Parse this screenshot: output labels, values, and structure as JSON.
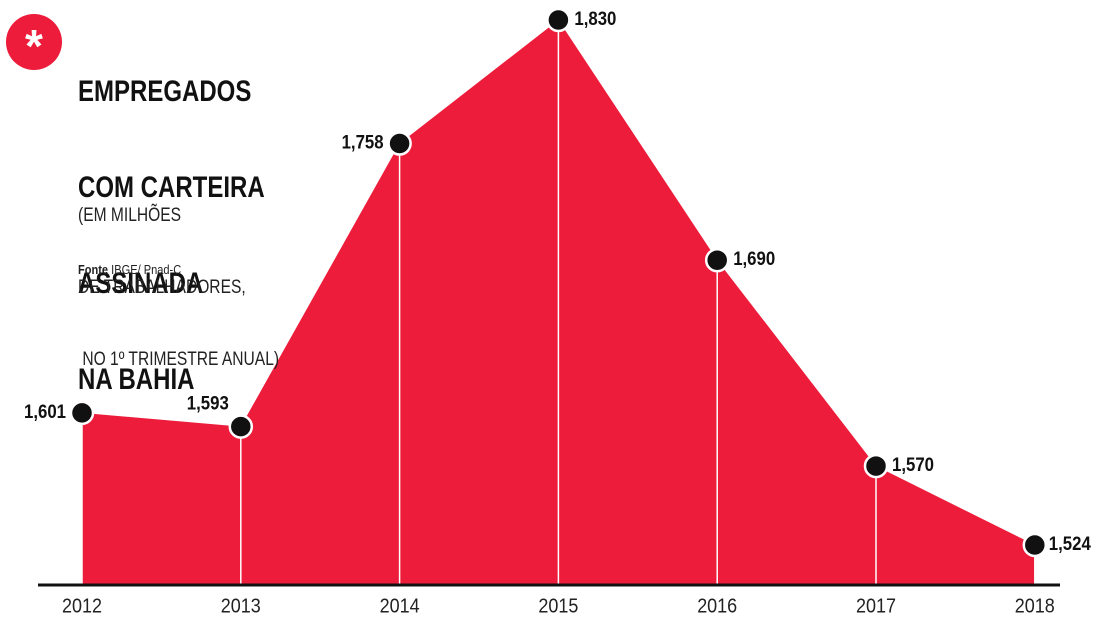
{
  "chart_data": {
    "type": "area",
    "title": [
      "EMPREGADOS",
      "COM CARTEIRA",
      "ASSINADA",
      "NA BAHIA"
    ],
    "subtitle": [
      "(EM MILHÕES",
      "DE TRABALHADORES,",
      " NO 1º TRIMESTRE ANUAL)"
    ],
    "source_label": "Fonte",
    "source": "IBGE/ Pnad-C",
    "categories": [
      "2012",
      "2013",
      "2014",
      "2015",
      "2016",
      "2017",
      "2018"
    ],
    "values": [
      1.601,
      1.593,
      1.758,
      1.83,
      1.69,
      1.57,
      1.524
    ],
    "value_labels": [
      "1,601",
      "1,593",
      "1,758",
      "1,830",
      "1,690",
      "1,570",
      "1,524"
    ],
    "color": "#ed1c3a"
  }
}
